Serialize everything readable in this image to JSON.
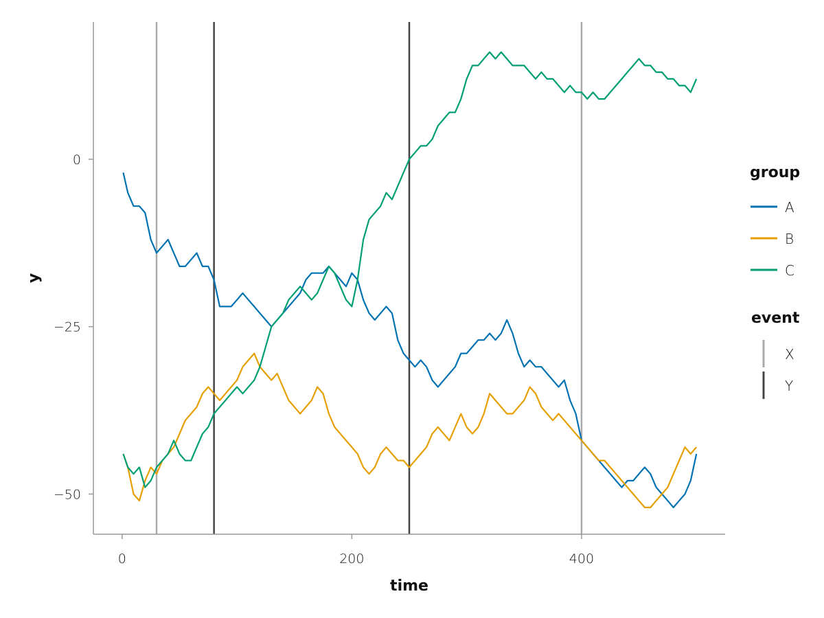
{
  "chart_data": {
    "type": "line",
    "xlabel": "time",
    "ylabel": "y",
    "xlim": [
      -25,
      525
    ],
    "ylim": [
      -56,
      20.5
    ],
    "xticks": [
      0,
      200,
      400
    ],
    "xtick_labels": [
      "0",
      "200",
      "400"
    ],
    "yticks": [
      0,
      -25,
      -50
    ],
    "ytick_labels": [
      "0",
      "−25",
      "−50"
    ],
    "grid": false,
    "legend_position": "right",
    "series": [
      {
        "name": "A",
        "color": "#0072B2",
        "x": [
          1,
          5,
          10,
          15,
          20,
          25,
          30,
          35,
          40,
          45,
          50,
          55,
          60,
          65,
          70,
          75,
          80,
          85,
          90,
          95,
          100,
          105,
          110,
          115,
          120,
          125,
          130,
          135,
          140,
          145,
          150,
          155,
          160,
          165,
          170,
          175,
          180,
          185,
          190,
          195,
          200,
          205,
          210,
          215,
          220,
          225,
          230,
          235,
          240,
          245,
          250,
          255,
          260,
          265,
          270,
          275,
          280,
          285,
          290,
          295,
          300,
          305,
          310,
          315,
          320,
          325,
          330,
          335,
          340,
          345,
          350,
          355,
          360,
          365,
          370,
          375,
          380,
          385,
          390,
          395,
          400,
          405,
          410,
          415,
          420,
          425,
          430,
          435,
          440,
          445,
          450,
          455,
          460,
          465,
          470,
          475,
          480,
          485,
          490,
          495,
          500
        ],
        "y": [
          -2,
          -5,
          -7,
          -7,
          -8,
          -12,
          -14,
          -13,
          -12,
          -14,
          -16,
          -16,
          -15,
          -14,
          -16,
          -16,
          -18,
          -22,
          -22,
          -22,
          -21,
          -20,
          -21,
          -22,
          -23,
          -24,
          -25,
          -24,
          -23,
          -22,
          -21,
          -20,
          -18,
          -17,
          -17,
          -17,
          -16,
          -17,
          -18,
          -19,
          -17,
          -18,
          -21,
          -23,
          -24,
          -23,
          -22,
          -23,
          -27,
          -29,
          -30,
          -31,
          -30,
          -31,
          -33,
          -34,
          -33,
          -32,
          -31,
          -29,
          -29,
          -28,
          -27,
          -27,
          -26,
          -27,
          -26,
          -24,
          -26,
          -29,
          -31,
          -30,
          -31,
          -31,
          -32,
          -33,
          -34,
          -33,
          -36,
          -38,
          -42,
          -43,
          -44,
          -45,
          -46,
          -47,
          -48,
          -49,
          -48,
          -48,
          -47,
          -46,
          -47,
          -49,
          -50,
          -51,
          -52,
          -51,
          -50,
          -48,
          -44
        ]
      },
      {
        "name": "B",
        "color": "#E69F00",
        "x": [
          1,
          5,
          10,
          15,
          20,
          25,
          30,
          35,
          40,
          45,
          50,
          55,
          60,
          65,
          70,
          75,
          80,
          85,
          90,
          95,
          100,
          105,
          110,
          115,
          120,
          125,
          130,
          135,
          140,
          145,
          150,
          155,
          160,
          165,
          170,
          175,
          180,
          185,
          190,
          195,
          200,
          205,
          210,
          215,
          220,
          225,
          230,
          235,
          240,
          245,
          250,
          255,
          260,
          265,
          270,
          275,
          280,
          285,
          290,
          295,
          300,
          305,
          310,
          315,
          320,
          325,
          330,
          335,
          340,
          345,
          350,
          355,
          360,
          365,
          370,
          375,
          380,
          385,
          390,
          395,
          400,
          405,
          410,
          415,
          420,
          425,
          430,
          435,
          440,
          445,
          450,
          455,
          460,
          465,
          470,
          475,
          480,
          485,
          490,
          495,
          500
        ],
        "y": [
          -44,
          -46,
          -50,
          -51,
          -48,
          -46,
          -47,
          -45,
          -44,
          -43,
          -41,
          -39,
          -38,
          -37,
          -35,
          -34,
          -35,
          -36,
          -35,
          -34,
          -33,
          -31,
          -30,
          -29,
          -31,
          -32,
          -33,
          -32,
          -34,
          -36,
          -37,
          -38,
          -37,
          -36,
          -34,
          -35,
          -38,
          -40,
          -41,
          -42,
          -43,
          -44,
          -46,
          -47,
          -46,
          -44,
          -43,
          -44,
          -45,
          -45,
          -46,
          -45,
          -44,
          -43,
          -41,
          -40,
          -41,
          -42,
          -40,
          -38,
          -40,
          -41,
          -40,
          -38,
          -35,
          -36,
          -37,
          -38,
          -38,
          -37,
          -36,
          -34,
          -35,
          -37,
          -38,
          -39,
          -38,
          -39,
          -40,
          -41,
          -42,
          -43,
          -44,
          -45,
          -45,
          -46,
          -47,
          -48,
          -49,
          -50,
          -51,
          -52,
          -52,
          -51,
          -50,
          -49,
          -47,
          -45,
          -43,
          -44,
          -43
        ]
      },
      {
        "name": "C",
        "color": "#009E73",
        "x": [
          1,
          5,
          10,
          15,
          20,
          25,
          30,
          35,
          40,
          45,
          50,
          55,
          60,
          65,
          70,
          75,
          80,
          85,
          90,
          95,
          100,
          105,
          110,
          115,
          120,
          125,
          130,
          135,
          140,
          145,
          150,
          155,
          160,
          165,
          170,
          175,
          180,
          185,
          190,
          195,
          200,
          205,
          210,
          215,
          220,
          225,
          230,
          235,
          240,
          245,
          250,
          255,
          260,
          265,
          270,
          275,
          280,
          285,
          290,
          295,
          300,
          305,
          310,
          315,
          320,
          325,
          330,
          335,
          340,
          345,
          350,
          355,
          360,
          365,
          370,
          375,
          380,
          385,
          390,
          395,
          400,
          405,
          410,
          415,
          420,
          425,
          430,
          435,
          440,
          445,
          450,
          455,
          460,
          465,
          470,
          475,
          480,
          485,
          490,
          495,
          500
        ],
        "y": [
          -44,
          -46,
          -47,
          -46,
          -49,
          -48,
          -46,
          -45,
          -44,
          -42,
          -44,
          -45,
          -45,
          -43,
          -41,
          -40,
          -38,
          -37,
          -36,
          -35,
          -34,
          -35,
          -34,
          -33,
          -31,
          -28,
          -25,
          -24,
          -23,
          -21,
          -20,
          -19,
          -20,
          -21,
          -20,
          -18,
          -16,
          -17,
          -19,
          -21,
          -22,
          -18,
          -12,
          -9,
          -8,
          -7,
          -5,
          -6,
          -4,
          -2,
          0,
          1,
          2,
          2,
          3,
          5,
          6,
          7,
          7,
          9,
          12,
          14,
          14,
          15,
          16,
          15,
          16,
          15,
          14,
          14,
          14,
          13,
          12,
          13,
          12,
          12,
          11,
          10,
          11,
          10,
          10,
          9,
          10,
          9,
          9,
          10,
          11,
          12,
          13,
          14,
          15,
          14,
          14,
          13,
          13,
          12,
          12,
          11,
          11,
          10,
          12
        ]
      }
    ],
    "events": [
      {
        "name": "X",
        "x": 30,
        "color": "#AAAAAA"
      },
      {
        "name": "Y",
        "x": 80,
        "color": "#444444"
      },
      {
        "name": "Y",
        "x": 250,
        "color": "#444444"
      },
      {
        "name": "X",
        "x": 400,
        "color": "#AAAAAA"
      }
    ],
    "legend": {
      "group_title": "group",
      "group_entries": [
        {
          "label": "A",
          "color": "#0072B2"
        },
        {
          "label": "B",
          "color": "#E69F00"
        },
        {
          "label": "C",
          "color": "#009E73"
        }
      ],
      "event_title": "event",
      "event_entries": [
        {
          "label": "X",
          "color": "#AAAAAA"
        },
        {
          "label": "Y",
          "color": "#444444"
        }
      ]
    }
  }
}
